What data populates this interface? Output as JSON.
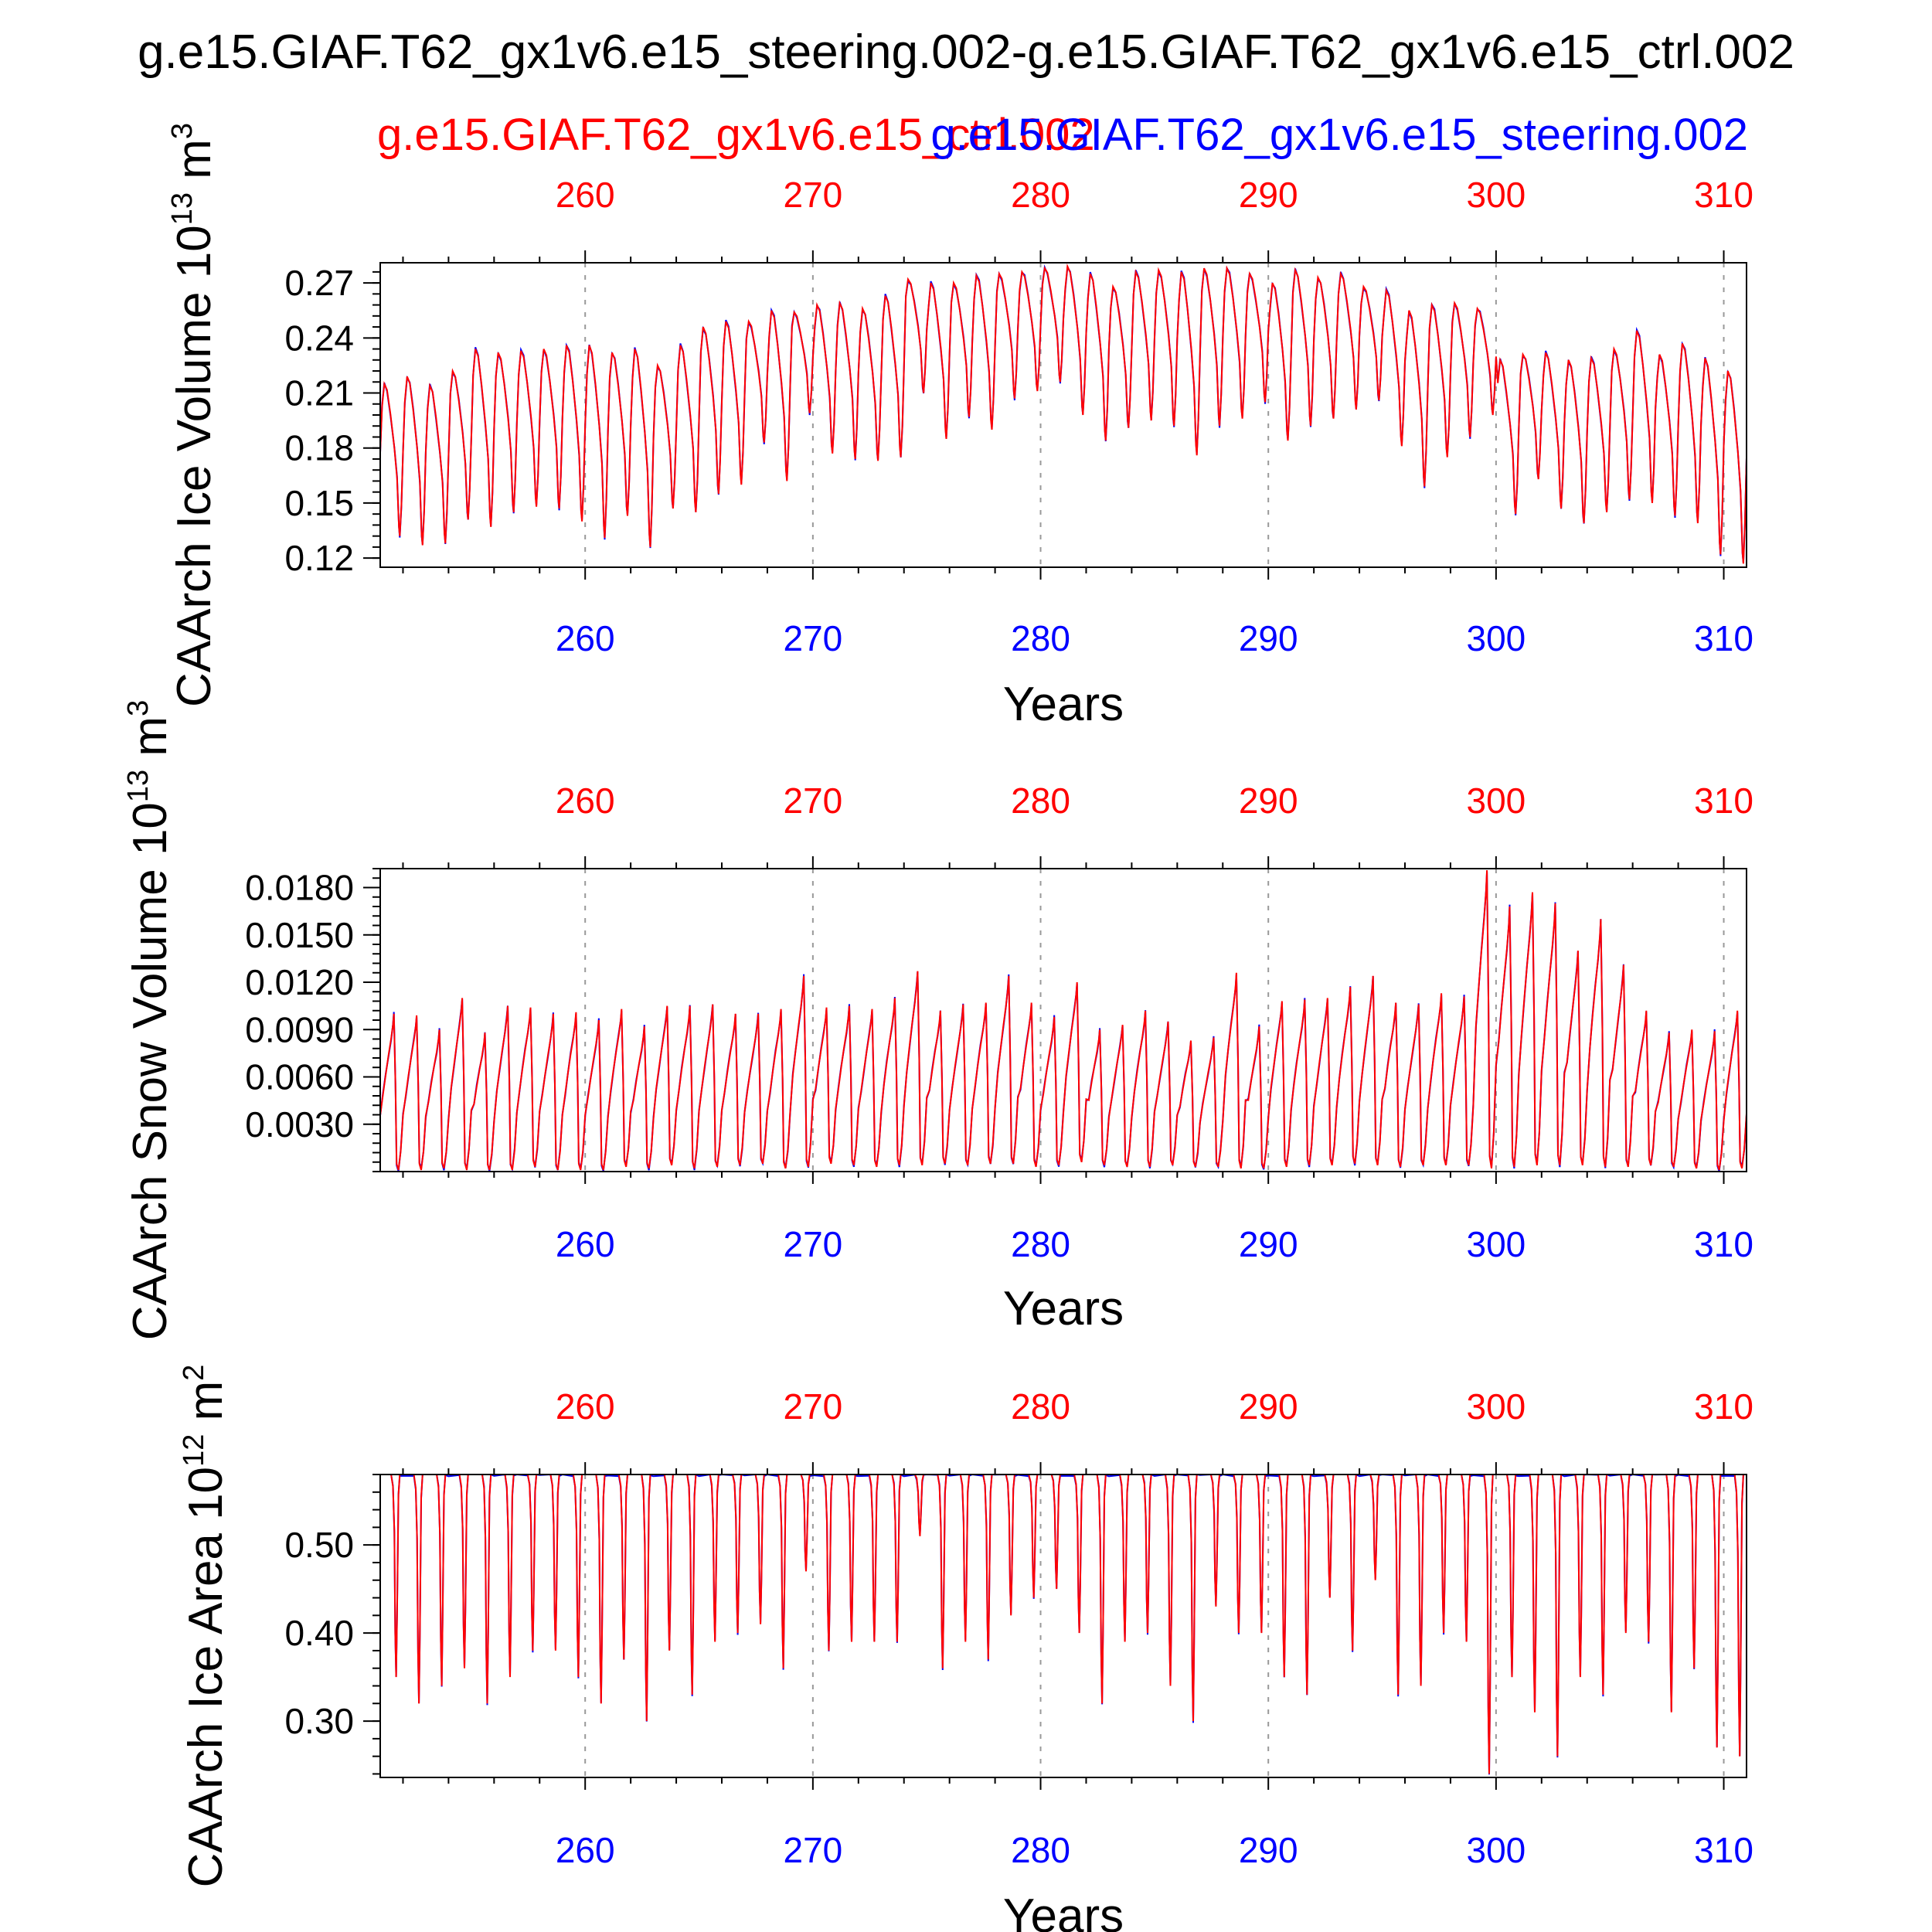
{
  "title": "g.e15.GIAF.T62_gx1v6.e15_steering.002-g.e15.GIAF.T62_gx1v6.e15_ctrl.002",
  "legend": {
    "ctrl": "g.e15.GIAF.T62_gx1v6.e15_ctrl.002",
    "steering": "g.e15.GIAF.T62_gx1v6.e15_steering.002"
  },
  "colors": {
    "ctrl": "#ff0000",
    "steering": "#0000ff",
    "axis": "#000000",
    "grid": "#999999"
  },
  "chart_data": [
    {
      "type": "line",
      "ylabel": "CAArch Ice Volume 10",
      "ylabel_exp": "13",
      "ylabel_unit": " m",
      "ylabel_unit_exp": "3",
      "xlabel": "Years",
      "xlim": [
        251,
        311
      ],
      "ylim": [
        0.115,
        0.281
      ],
      "xticks": [
        260,
        270,
        280,
        290,
        300,
        310
      ],
      "yticks": [
        "0.12",
        "0.15",
        "0.18",
        "0.21",
        "0.24",
        "0.27"
      ],
      "grid_x": true,
      "series": [
        {
          "name": "g.e15.GIAF.T62_gx1v6.e15_ctrl.002",
          "x": [
            251,
            252,
            253,
            254,
            255,
            256,
            257,
            258,
            259,
            260,
            261,
            262,
            263,
            264,
            265,
            266,
            267,
            268,
            269,
            270,
            271,
            272,
            273,
            274,
            275,
            276,
            277,
            278,
            279,
            280,
            281,
            282,
            283,
            284,
            285,
            286,
            287,
            288,
            289,
            290,
            291,
            292,
            293,
            294,
            295,
            296,
            297,
            298,
            299,
            300,
            301,
            302,
            303,
            304,
            305,
            306,
            307,
            308,
            309,
            310
          ],
          "max": [
            0.215,
            0.219,
            0.214,
            0.222,
            0.234,
            0.232,
            0.233,
            0.234,
            0.236,
            0.236,
            0.232,
            0.234,
            0.225,
            0.236,
            0.246,
            0.249,
            0.249,
            0.255,
            0.254,
            0.258,
            0.259,
            0.256,
            0.263,
            0.272,
            0.27,
            0.27,
            0.274,
            0.275,
            0.276,
            0.278,
            0.279,
            0.275,
            0.268,
            0.276,
            0.277,
            0.276,
            0.278,
            0.278,
            0.275,
            0.27,
            0.277,
            0.273,
            0.275,
            0.268,
            0.266,
            0.255,
            0.258,
            0.259,
            0.256,
            0.228,
            0.231,
            0.232,
            0.228,
            0.229,
            0.234,
            0.244,
            0.231,
            0.237,
            0.229,
            0.222
          ],
          "min": [
            0.132,
            0.127,
            0.128,
            0.141,
            0.137,
            0.145,
            0.148,
            0.147,
            0.14,
            0.131,
            0.143,
            0.126,
            0.147,
            0.145,
            0.155,
            0.16,
            0.183,
            0.162,
            0.199,
            0.177,
            0.174,
            0.173,
            0.175,
            0.21,
            0.185,
            0.197,
            0.19,
            0.207,
            0.211,
            0.216,
            0.198,
            0.184,
            0.191,
            0.195,
            0.192,
            0.176,
            0.192,
            0.196,
            0.205,
            0.184,
            0.192,
            0.196,
            0.201,
            0.206,
            0.181,
            0.159,
            0.175,
            0.186,
            0.198,
            0.144,
            0.163,
            0.147,
            0.139,
            0.145,
            0.152,
            0.15,
            0.143,
            0.139,
            0.122,
            0.117
          ]
        }
      ]
    },
    {
      "type": "line",
      "ylabel": "CAArch Snow Volume 10",
      "ylabel_exp": "13",
      "ylabel_unit": " m",
      "ylabel_unit_exp": "3",
      "xlabel": "Years",
      "xlim": [
        251,
        311
      ],
      "ylim": [
        0.0,
        0.0192
      ],
      "xticks": [
        260,
        270,
        280,
        290,
        300,
        310
      ],
      "yticks": [
        "0.0030",
        "0.0060",
        "0.0090",
        "0.0120",
        "0.0150",
        "0.0180"
      ],
      "grid_x": true,
      "series": [
        {
          "name": "g.e15.GIAF.T62_gx1v6.e15_ctrl.002",
          "x": [
            251,
            252,
            253,
            254,
            255,
            256,
            257,
            258,
            259,
            260,
            261,
            262,
            263,
            264,
            265,
            266,
            267,
            268,
            269,
            270,
            271,
            272,
            273,
            274,
            275,
            276,
            277,
            278,
            279,
            280,
            281,
            282,
            283,
            284,
            285,
            286,
            287,
            288,
            289,
            290,
            291,
            292,
            293,
            294,
            295,
            296,
            297,
            298,
            299,
            300,
            301,
            302,
            303,
            304,
            305,
            306,
            307,
            308,
            309,
            310
          ],
          "max": [
            0.01,
            0.0099,
            0.009,
            0.011,
            0.0088,
            0.0105,
            0.0104,
            0.01,
            0.0101,
            0.0096,
            0.0103,
            0.0092,
            0.0105,
            0.0105,
            0.0106,
            0.01,
            0.01,
            0.0103,
            0.0124,
            0.0104,
            0.0105,
            0.0103,
            0.011,
            0.0127,
            0.0102,
            0.0106,
            0.0107,
            0.0124,
            0.0107,
            0.0098,
            0.012,
            0.009,
            0.0093,
            0.0102,
            0.0095,
            0.0083,
            0.0085,
            0.0126,
            0.0092,
            0.0108,
            0.0109,
            0.011,
            0.0117,
            0.0124,
            0.0107,
            0.0106,
            0.0113,
            0.0111,
            0.0191,
            0.0168,
            0.0177,
            0.017,
            0.014,
            0.016,
            0.0131,
            0.0102,
            0.0088,
            0.009,
            0.0089,
            0.0102
          ],
          "min": [
            0.0001,
            0.0001,
            0.0002,
            0.0001,
            0.0001,
            0.0001,
            0.0003,
            0.0001,
            0.0001,
            0.0001,
            0.0003,
            0.0002,
            0.0004,
            0.0002,
            0.0003,
            0.0004,
            0.0005,
            0.0002,
            0.0003,
            0.0005,
            0.0004,
            0.0003,
            0.0004,
            0.0004,
            0.0005,
            0.0004,
            0.0005,
            0.0005,
            0.0003,
            0.0004,
            0.0006,
            0.0004,
            0.0003,
            0.0003,
            0.0004,
            0.0003,
            0.0003,
            0.0002,
            0.0002,
            0.0003,
            0.0004,
            0.0004,
            0.0005,
            0.0004,
            0.0003,
            0.0004,
            0.0004,
            0.0004,
            0.0002,
            0.0003,
            0.0004,
            0.0004,
            0.0004,
            0.0003,
            0.0003,
            0.0004,
            0.0003,
            0.0002,
            0.0001,
            0.0002
          ]
        }
      ]
    },
    {
      "type": "line",
      "ylabel": "CAArch Ice Area 10",
      "ylabel_exp": "12",
      "ylabel_unit": " m",
      "ylabel_unit_exp": "2",
      "xlabel": "Years",
      "xlim": [
        251,
        311
      ],
      "ylim": [
        0.236,
        0.58
      ],
      "xticks": [
        260,
        270,
        280,
        290,
        300,
        310
      ],
      "yticks": [
        "0.30",
        "0.40",
        "0.50"
      ],
      "grid_x": true,
      "series": [
        {
          "name": "g.e15.GIAF.T62_gx1v6.e15_ctrl.002",
          "x": [
            251,
            252,
            253,
            254,
            255,
            256,
            257,
            258,
            259,
            260,
            261,
            262,
            263,
            264,
            265,
            266,
            267,
            268,
            269,
            270,
            271,
            272,
            273,
            274,
            275,
            276,
            277,
            278,
            279,
            280,
            281,
            282,
            283,
            284,
            285,
            286,
            287,
            288,
            289,
            290,
            291,
            292,
            293,
            294,
            295,
            296,
            297,
            298,
            299,
            300,
            301,
            302,
            303,
            304,
            305,
            306,
            307,
            308,
            309,
            310
          ],
          "max": [
            0.58,
            0.58,
            0.58,
            0.58,
            0.58,
            0.58,
            0.58,
            0.58,
            0.58,
            0.58,
            0.58,
            0.58,
            0.58,
            0.58,
            0.58,
            0.58,
            0.58,
            0.58,
            0.58,
            0.58,
            0.58,
            0.58,
            0.58,
            0.58,
            0.58,
            0.58,
            0.58,
            0.58,
            0.58,
            0.58,
            0.58,
            0.58,
            0.58,
            0.58,
            0.58,
            0.58,
            0.58,
            0.58,
            0.58,
            0.58,
            0.58,
            0.58,
            0.58,
            0.58,
            0.58,
            0.58,
            0.58,
            0.58,
            0.58,
            0.58,
            0.58,
            0.58,
            0.58,
            0.58,
            0.58,
            0.58,
            0.58,
            0.58,
            0.58,
            0.58
          ],
          "min": [
            0.35,
            0.32,
            0.34,
            0.36,
            0.32,
            0.35,
            0.38,
            0.38,
            0.35,
            0.32,
            0.37,
            0.3,
            0.38,
            0.33,
            0.39,
            0.4,
            0.41,
            0.36,
            0.47,
            0.38,
            0.39,
            0.39,
            0.39,
            0.51,
            0.36,
            0.39,
            0.37,
            0.42,
            0.44,
            0.45,
            0.4,
            0.32,
            0.39,
            0.4,
            0.34,
            0.3,
            0.43,
            0.4,
            0.4,
            0.35,
            0.33,
            0.44,
            0.38,
            0.46,
            0.33,
            0.34,
            0.4,
            0.39,
            0.24,
            0.35,
            0.31,
            0.26,
            0.35,
            0.33,
            0.4,
            0.39,
            0.31,
            0.36,
            0.27,
            0.26
          ]
        }
      ]
    }
  ]
}
